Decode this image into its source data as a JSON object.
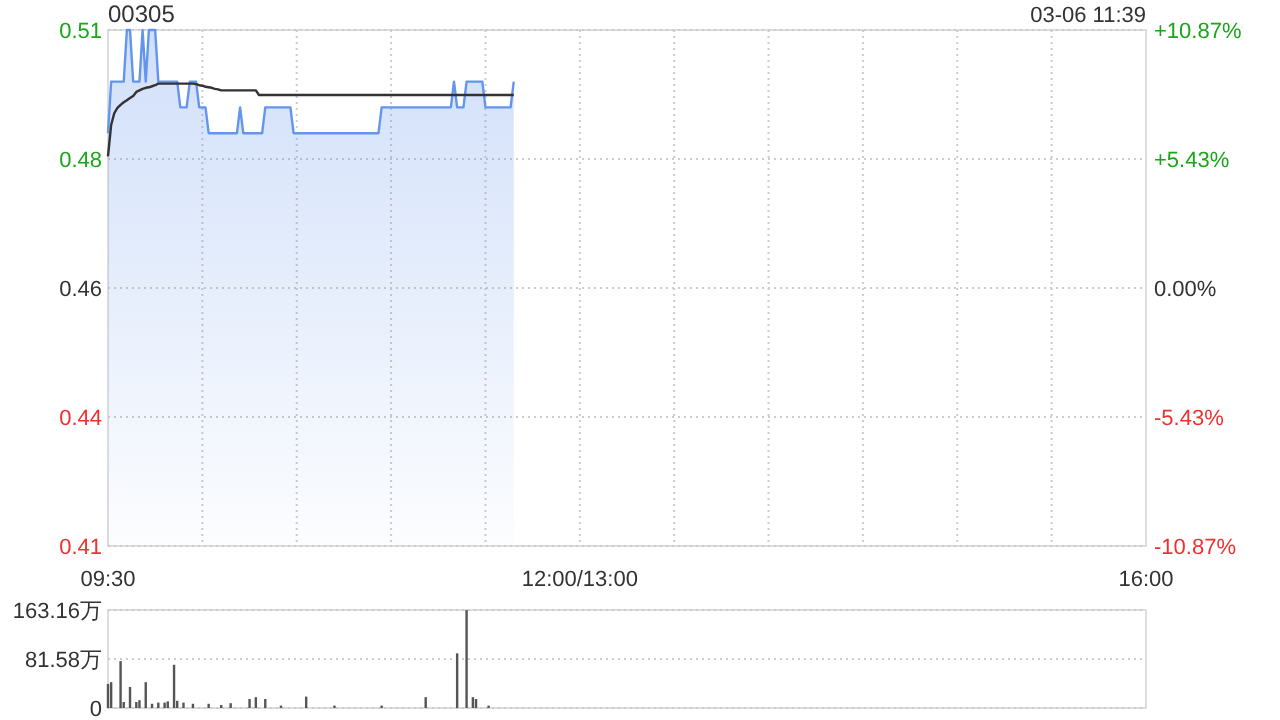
{
  "chart_data": [
    {
      "type": "line",
      "title": "00305",
      "annotations": [
        "03-06 11:39"
      ],
      "categories": [
        "09:30",
        null,
        null,
        null,
        null,
        null,
        null,
        null,
        null,
        null,
        null,
        null,
        null,
        null,
        null,
        null,
        null,
        null,
        null,
        null,
        null,
        null,
        null,
        null,
        null,
        null,
        null,
        null,
        null,
        null,
        null,
        null,
        null,
        null,
        null,
        null,
        null,
        null,
        null,
        null,
        null,
        null,
        null,
        null,
        null,
        null,
        null,
        null,
        null,
        null,
        null,
        null,
        null,
        null,
        null,
        null,
        null,
        null,
        null,
        null,
        null,
        null,
        null,
        null,
        null,
        null,
        null,
        null,
        null,
        null,
        null,
        null,
        null,
        null,
        null,
        null,
        null,
        null,
        null,
        null,
        null,
        null,
        null,
        null,
        null,
        null,
        null,
        null,
        null,
        null,
        null,
        null,
        null,
        null,
        null,
        null,
        null,
        null,
        null,
        null,
        null,
        null,
        null,
        null,
        null,
        null,
        null,
        null,
        null,
        null,
        null,
        null,
        null,
        null,
        null,
        null,
        null,
        null,
        null,
        null,
        null,
        null,
        null,
        null,
        null,
        null,
        null,
        null,
        null,
        null,
        null,
        null,
        null,
        null,
        null,
        null,
        null,
        null,
        null,
        null,
        null,
        null,
        null,
        null,
        null,
        null,
        null,
        null,
        null,
        null,
        "12:00/13:00",
        null,
        null,
        null,
        null,
        null,
        null,
        null,
        null,
        null,
        null,
        null,
        null,
        null,
        null,
        null,
        null,
        null,
        null,
        null,
        null,
        null,
        null,
        null,
        null,
        null,
        null,
        null,
        null,
        null,
        null,
        null,
        null,
        null,
        null,
        null,
        null,
        null,
        null,
        null,
        null,
        null,
        null,
        null,
        null,
        null,
        null,
        null,
        null,
        null,
        null,
        null,
        null,
        null,
        null,
        null,
        null,
        null,
        null,
        null,
        null,
        null,
        null,
        null,
        null,
        null,
        null,
        null,
        null,
        null,
        null,
        null,
        null,
        null,
        null,
        null,
        null,
        null,
        null,
        null,
        null,
        null,
        null,
        null,
        null,
        null,
        null,
        null,
        null,
        null,
        null,
        null,
        null,
        null,
        null,
        null,
        null,
        null,
        null,
        null,
        null,
        null,
        null,
        null,
        null,
        null,
        null,
        null,
        null,
        null,
        null,
        null,
        null,
        null,
        null,
        null,
        null,
        null,
        null,
        null,
        null,
        null,
        null,
        null,
        null,
        null,
        null,
        null,
        null,
        null,
        null,
        null,
        null,
        null,
        null,
        null,
        null,
        null,
        null,
        null,
        null,
        null,
        null,
        null,
        null,
        null,
        null,
        null,
        null,
        null,
        null,
        null,
        null,
        null,
        null,
        null,
        null,
        null,
        null,
        null,
        null,
        null,
        null,
        null,
        null,
        null,
        null,
        null,
        null,
        null,
        null,
        null,
        null,
        null,
        null,
        null,
        null,
        null,
        null,
        null,
        "16:00"
      ],
      "ylim": [
        0.41,
        0.51
      ],
      "yticks": [
        {
          "value": 0.41,
          "label": "0.41"
        },
        {
          "value": 0.435,
          "label": "0.44"
        },
        {
          "value": 0.46,
          "label": "0.46"
        },
        {
          "value": 0.485,
          "label": "0.48"
        },
        {
          "value": 0.51,
          "label": "0.51"
        }
      ],
      "y2lim": [
        -10.87,
        10.87
      ],
      "y2ticks": [
        {
          "value": 10.87,
          "label": "+10.87%"
        },
        {
          "value": 5.43,
          "label": "+5.43%"
        },
        {
          "value": 0,
          "label": "0.00%"
        },
        {
          "value": -5.43,
          "label": "-5.43%"
        },
        {
          "value": -10.87,
          "label": "-10.87%"
        }
      ],
      "grid": true,
      "marker": "none",
      "line_style": "solid",
      "series": [
        {
          "type": "area",
          "color": "#6495ed",
          "values": [
            0.49,
            0.5,
            0.5,
            0.5,
            0.5,
            0.5,
            0.51,
            0.51,
            0.5,
            0.5,
            0.5,
            0.51,
            0.5,
            0.51,
            0.51,
            0.51,
            0.5,
            0.5,
            0.5,
            0.5,
            0.5,
            0.5,
            0.5,
            0.495,
            0.495,
            0.495,
            0.5,
            0.5,
            0.5,
            0.495,
            0.495,
            0.495,
            0.49,
            0.49,
            0.49,
            0.49,
            0.49,
            0.49,
            0.49,
            0.49,
            0.49,
            0.49,
            0.495,
            0.49,
            0.49,
            0.49,
            0.49,
            0.49,
            0.49,
            0.49,
            0.495,
            0.495,
            0.495,
            0.495,
            0.495,
            0.495,
            0.495,
            0.495,
            0.495,
            0.49,
            0.49,
            0.49,
            0.49,
            0.49,
            0.49,
            0.49,
            0.49,
            0.49,
            0.49,
            0.49,
            0.49,
            0.49,
            0.49,
            0.49,
            0.49,
            0.49,
            0.49,
            0.49,
            0.49,
            0.49,
            0.49,
            0.49,
            0.49,
            0.49,
            0.49,
            0.49,
            0.49,
            0.495,
            0.495,
            0.495,
            0.495,
            0.495,
            0.495,
            0.495,
            0.495,
            0.495,
            0.495,
            0.495,
            0.495,
            0.495,
            0.495,
            0.495,
            0.495,
            0.495,
            0.495,
            0.495,
            0.495,
            0.495,
            0.495,
            0.495,
            0.5,
            0.495,
            0.495,
            0.495,
            0.5,
            0.5,
            0.5,
            0.5,
            0.5,
            0.5,
            0.495,
            0.495,
            0.495,
            0.495,
            0.495,
            0.495,
            0.495,
            0.495,
            0.495,
            0.5,
            null,
            null,
            null,
            null,
            null,
            null,
            null,
            null,
            null,
            null,
            null,
            null,
            null,
            null,
            null,
            null,
            null,
            null,
            null,
            null,
            null,
            null,
            null,
            null,
            null,
            null,
            null,
            null,
            null,
            null,
            null,
            null,
            null,
            null,
            null,
            null,
            null,
            null,
            null,
            null,
            null,
            null,
            null,
            null,
            null,
            null,
            null,
            null,
            null,
            null,
            null,
            null,
            null,
            null,
            null,
            null,
            null,
            null,
            null,
            null,
            null,
            null,
            null,
            null,
            null,
            null,
            null,
            null,
            null,
            null,
            null,
            null,
            null,
            null,
            null,
            null,
            null,
            null,
            null,
            null,
            null,
            null,
            null,
            null,
            null,
            null,
            null,
            null,
            null,
            null,
            null,
            null,
            null,
            null,
            null,
            null,
            null,
            null,
            null,
            null,
            null,
            null,
            null,
            null,
            null,
            null,
            null,
            null,
            null,
            null,
            null,
            null,
            null,
            null,
            null,
            null,
            null,
            null,
            null,
            null,
            null,
            null,
            null,
            null,
            null,
            null,
            null,
            null,
            null,
            null,
            null,
            null,
            null,
            null,
            null,
            null,
            null,
            null,
            null,
            null,
            null,
            null,
            null,
            null,
            null,
            null,
            null,
            null,
            null,
            null,
            null,
            null,
            null,
            null,
            null,
            null,
            null,
            null,
            null,
            null,
            null,
            null,
            null,
            null,
            null,
            null,
            null,
            null,
            null,
            null,
            null,
            null,
            null,
            null,
            null,
            null,
            null,
            null,
            null,
            null,
            null,
            null,
            null,
            null,
            null,
            null,
            null,
            null,
            null,
            null,
            null,
            null,
            null,
            null,
            null,
            null,
            null,
            null,
            null,
            null,
            null
          ]
        },
        {
          "color": "#333333",
          "values": [
            0.4855,
            0.4916,
            0.4939,
            0.4949,
            0.4955,
            0.496,
            0.4964,
            0.4968,
            0.4972,
            0.498,
            0.4983,
            0.4986,
            0.4988,
            0.4989,
            0.4991,
            0.4993,
            0.4996,
            0.4996,
            0.4996,
            0.4996,
            0.4996,
            0.4996,
            0.4996,
            0.4996,
            0.4996,
            0.4996,
            0.4996,
            0.4996,
            0.4995,
            0.4993,
            0.4992,
            0.499,
            0.4989,
            0.4988,
            0.4986,
            0.4985,
            0.4983,
            0.4983,
            0.4983,
            0.4983,
            0.4983,
            0.4983,
            0.4983,
            0.4983,
            0.4983,
            0.4983,
            0.4983,
            0.4983,
            0.4974,
            0.4974,
            0.4974,
            0.4974,
            0.4974,
            0.4974,
            0.4974,
            0.4974,
            0.4974,
            0.4974,
            0.4974,
            0.4974,
            0.4974,
            0.4974,
            0.4974,
            0.4974,
            0.4974,
            0.4974,
            0.4974,
            0.4974,
            0.4974,
            0.4974,
            0.4974,
            0.4974,
            0.4974,
            0.4974,
            0.4974,
            0.4974,
            0.4974,
            0.4974,
            0.4974,
            0.4974,
            0.4974,
            0.4974,
            0.4974,
            0.4974,
            0.4974,
            0.4974,
            0.4974,
            0.4974,
            0.4974,
            0.4974,
            0.4974,
            0.4974,
            0.4974,
            0.4974,
            0.4974,
            0.4974,
            0.4974,
            0.4974,
            0.4974,
            0.4974,
            0.4974,
            0.4974,
            0.4974,
            0.4974,
            0.4974,
            0.4974,
            0.4974,
            0.4974,
            0.4974,
            0.4974,
            0.4974,
            0.4974,
            0.4974,
            0.4974,
            0.4974,
            0.4974,
            0.4974,
            0.4974,
            0.4974,
            0.4974,
            0.4974,
            0.4974,
            0.4974,
            0.4974,
            0.4974,
            0.4974,
            0.4974,
            0.4974,
            0.4974,
            0.4974,
            null,
            null,
            null,
            null,
            null,
            null,
            null,
            null,
            null,
            null,
            null,
            null,
            null,
            null,
            null,
            null,
            null,
            null,
            null,
            null,
            null,
            null,
            null,
            null,
            null,
            null,
            null,
            null,
            null,
            null,
            null,
            null,
            null,
            null,
            null,
            null,
            null,
            null,
            null,
            null,
            null,
            null,
            null,
            null,
            null,
            null,
            null,
            null,
            null,
            null,
            null,
            null,
            null,
            null,
            null,
            null,
            null,
            null,
            null,
            null,
            null,
            null,
            null,
            null,
            null,
            null,
            null,
            null,
            null,
            null,
            null,
            null,
            null,
            null,
            null,
            null,
            null,
            null,
            null,
            null,
            null,
            null,
            null,
            null,
            null,
            null,
            null,
            null,
            null,
            null,
            null,
            null,
            null,
            null,
            null,
            null,
            null,
            null,
            null,
            null,
            null,
            null,
            null,
            null,
            null,
            null,
            null,
            null,
            null,
            null,
            null,
            null,
            null,
            null,
            null,
            null,
            null,
            null,
            null,
            null,
            null,
            null,
            null,
            null,
            null,
            null,
            null,
            null,
            null,
            null,
            null,
            null,
            null,
            null,
            null,
            null,
            null,
            null,
            null,
            null,
            null,
            null,
            null,
            null,
            null,
            null,
            null,
            null,
            null,
            null,
            null,
            null,
            null,
            null,
            null,
            null,
            null,
            null,
            null,
            null,
            null,
            null,
            null,
            null,
            null,
            null,
            null,
            null,
            null,
            null,
            null,
            null,
            null,
            null,
            null,
            null,
            null,
            null,
            null,
            null,
            null,
            null,
            null,
            null,
            null,
            null,
            null,
            null,
            null,
            null,
            null,
            null,
            null,
            null,
            null,
            null,
            null,
            null,
            null,
            null,
            null
          ]
        }
      ]
    },
    {
      "type": "bar",
      "tick_labels": "y",
      "grid": "y",
      "categories": [
        null,
        null,
        null,
        null,
        null,
        null,
        null,
        null,
        null,
        null,
        null,
        null,
        null,
        null,
        null,
        null,
        null,
        null,
        null,
        null,
        null,
        null,
        null,
        null,
        null,
        null,
        null,
        null,
        null,
        null,
        null,
        null,
        null,
        null,
        null,
        null,
        null,
        null,
        null,
        null,
        null,
        null,
        null,
        null,
        null,
        null,
        null,
        null,
        null,
        null,
        null,
        null,
        null,
        null,
        null,
        null,
        null,
        null,
        null,
        null,
        null,
        null,
        null,
        null,
        null,
        null,
        null,
        null,
        null,
        null,
        null,
        null,
        null,
        null,
        null,
        null,
        null,
        null,
        null,
        null,
        null,
        null,
        null,
        null,
        null,
        null,
        null,
        null,
        null,
        null,
        null,
        null,
        null,
        null,
        null,
        null,
        null,
        null,
        null,
        null,
        null,
        null,
        null,
        null,
        null,
        null,
        null,
        null,
        null,
        null,
        null,
        null,
        null,
        null,
        null,
        null,
        null,
        null,
        null,
        null,
        null,
        null,
        null,
        null,
        null,
        null,
        null,
        null,
        null,
        null,
        null,
        null,
        null,
        null,
        null,
        null,
        null,
        null,
        null,
        null,
        null,
        null,
        null,
        null,
        null,
        null,
        null,
        null,
        null,
        null,
        null,
        null,
        null,
        null,
        null,
        null,
        null,
        null,
        null,
        null,
        null,
        null,
        null,
        null,
        null,
        null,
        null,
        null,
        null,
        null,
        null,
        null,
        null,
        null,
        null,
        null,
        null,
        null,
        null,
        null,
        null,
        null,
        null,
        null,
        null,
        null,
        null,
        null,
        null,
        null,
        null,
        null,
        null,
        null,
        null,
        null,
        null,
        null,
        null,
        null,
        null,
        null,
        null,
        null,
        null,
        null,
        null,
        null,
        null,
        null,
        null,
        null,
        null,
        null,
        null,
        null,
        null,
        null,
        null,
        null,
        null,
        null,
        null,
        null,
        null,
        null,
        null,
        null,
        null,
        null,
        null,
        null,
        null,
        null,
        null,
        null,
        null,
        null,
        null,
        null,
        null,
        null,
        null,
        null,
        null,
        null,
        null,
        null,
        null,
        null,
        null,
        null,
        null,
        null,
        null,
        null,
        null,
        null,
        null,
        null,
        null,
        null,
        null,
        null,
        null,
        null,
        null,
        null,
        null,
        null,
        null,
        null,
        null,
        null,
        null,
        null,
        null,
        null,
        null,
        null,
        null,
        null,
        null,
        null,
        null,
        null,
        null,
        null,
        null,
        null,
        null,
        null,
        null,
        null,
        null,
        null,
        null,
        null,
        null,
        null,
        null,
        null,
        null,
        null,
        null,
        null,
        null,
        null,
        null,
        null,
        null,
        null,
        null,
        null,
        null,
        null,
        null,
        null,
        null,
        null,
        null,
        null,
        null,
        null,
        null,
        null,
        null,
        null,
        null,
        null,
        null
      ],
      "ylim": [
        0,
        163.16
      ],
      "yticks": [
        {
          "value": 0,
          "label": "0"
        },
        {
          "value": 81.58,
          "label": "81.58万"
        },
        {
          "value": 163.16,
          "label": "163.16万"
        }
      ],
      "color": "#555555",
      "values": [
        40,
        43,
        null,
        null,
        78,
        10,
        null,
        35,
        null,
        10,
        13,
        null,
        43,
        null,
        7,
        null,
        9,
        null,
        9,
        11,
        null,
        72,
        12,
        null,
        9,
        null,
        null,
        7,
        null,
        null,
        null,
        null,
        7,
        null,
        null,
        null,
        5,
        null,
        null,
        8,
        null,
        null,
        null,
        null,
        null,
        15,
        null,
        18,
        null,
        null,
        15,
        null,
        null,
        null,
        null,
        4,
        null,
        null,
        null,
        null,
        null,
        null,
        null,
        19,
        null,
        null,
        null,
        null,
        null,
        null,
        null,
        null,
        4,
        null,
        null,
        null,
        null,
        null,
        null,
        null,
        null,
        null,
        null,
        null,
        null,
        null,
        null,
        4,
        null,
        null,
        null,
        null,
        null,
        null,
        null,
        null,
        null,
        null,
        null,
        null,
        null,
        18,
        null,
        null,
        null,
        null,
        null,
        null,
        null,
        null,
        null,
        91,
        null,
        null,
        163,
        null,
        18,
        15,
        null,
        null,
        null,
        4,
        null,
        null,
        null,
        null,
        null,
        null,
        null,
        null,
        null,
        null,
        null,
        null,
        null,
        null,
        null,
        null,
        null,
        null,
        null,
        null,
        null,
        null,
        null,
        null,
        null,
        null,
        null,
        null,
        null,
        null,
        null,
        null,
        null,
        null,
        null,
        null,
        null,
        null,
        null,
        null,
        null,
        null,
        null,
        null,
        null,
        null,
        null,
        null,
        null,
        null,
        null,
        null,
        null,
        null,
        null,
        null,
        null,
        null,
        null,
        null,
        null,
        null,
        null,
        null,
        null,
        null,
        null,
        null,
        null,
        null,
        null,
        null,
        null,
        null,
        null,
        null,
        null,
        null,
        null,
        null,
        null,
        null,
        null,
        null,
        null,
        null,
        null,
        null,
        null,
        null,
        null,
        null,
        null,
        null,
        null,
        null,
        null,
        null,
        null,
        null,
        null,
        null,
        null,
        null,
        null,
        null,
        null,
        null,
        null,
        null,
        null,
        null,
        null,
        null,
        null,
        null,
        null,
        null,
        null,
        null,
        null,
        null,
        null,
        null,
        null,
        null,
        null,
        null,
        null,
        null,
        null,
        null,
        null,
        null,
        null,
        null,
        null,
        null,
        null,
        null,
        null,
        null,
        null,
        null,
        null,
        null,
        null,
        null,
        null,
        null,
        null,
        null,
        null,
        null,
        null,
        null,
        null,
        null,
        null,
        null,
        null,
        null,
        null,
        null,
        null,
        null,
        null,
        null,
        null,
        null,
        null,
        null,
        null,
        null,
        null,
        null,
        null,
        null,
        null,
        null,
        null,
        null,
        null,
        null,
        null,
        null,
        null,
        null,
        null,
        null,
        null,
        null,
        null,
        null,
        null,
        null,
        null,
        null,
        null,
        null,
        null,
        null,
        null,
        null,
        null,
        null,
        null,
        null,
        null
      ]
    }
  ]
}
